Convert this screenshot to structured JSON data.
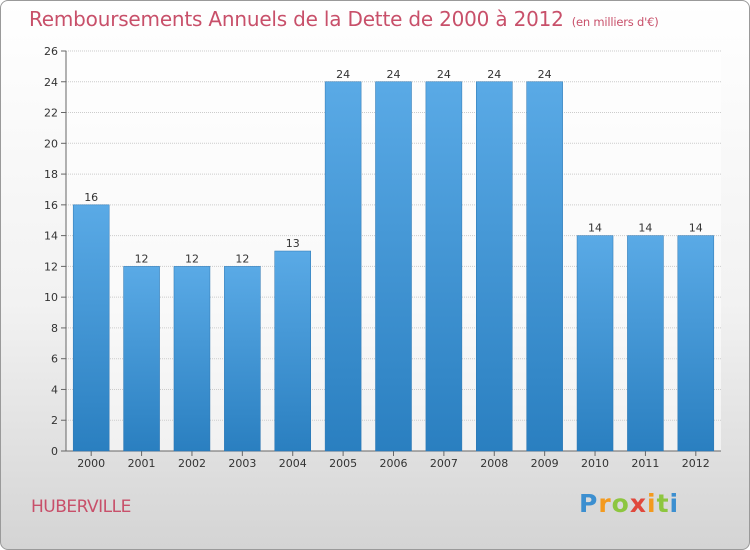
{
  "title": "Remboursements Annuels de la Dette de 2000 à 2012",
  "subtitle": "(en milliers d'€)",
  "commune": "HUBERVILLE",
  "brand": {
    "p": "P",
    "r": "r",
    "o": "o",
    "x": "x",
    "i": "i",
    "t": "t",
    "i2": "i"
  },
  "colors": {
    "title": "#c8506a",
    "bar_light": "#5aaae6",
    "bar_dark": "#2a7fc0",
    "grid": "#cccccc"
  },
  "chart_data": {
    "type": "bar",
    "title": "Remboursements Annuels de la Dette de 2000 à 2012",
    "xlabel": "",
    "ylabel": "",
    "ylim": [
      0,
      26
    ],
    "yticks": [
      0,
      2,
      4,
      6,
      8,
      10,
      12,
      14,
      16,
      18,
      20,
      22,
      24,
      26
    ],
    "grid": true,
    "categories": [
      "2000",
      "2001",
      "2002",
      "2003",
      "2004",
      "2005",
      "2006",
      "2007",
      "2008",
      "2009",
      "2010",
      "2011",
      "2012"
    ],
    "values": [
      16,
      12,
      12,
      12,
      13,
      24,
      24,
      24,
      24,
      24,
      14,
      14,
      14
    ]
  }
}
